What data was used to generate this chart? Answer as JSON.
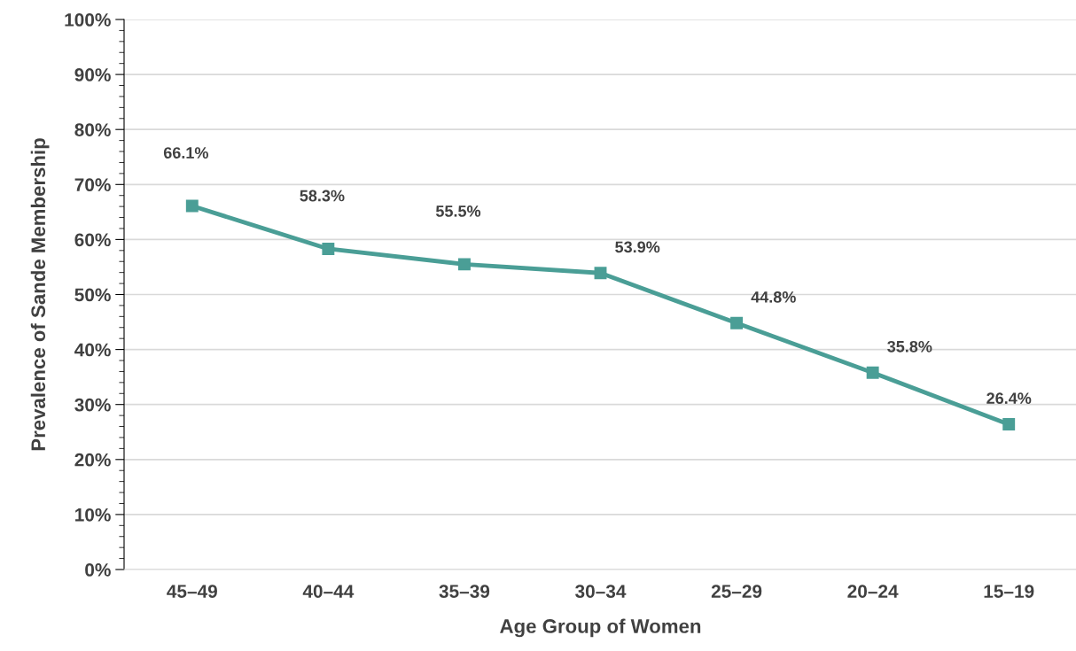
{
  "chart_data": {
    "type": "line",
    "xlabel": "Age Group of Women",
    "ylabel": "Prevalence of Sande Membership",
    "categories": [
      "45–49",
      "40–44",
      "35–39",
      "30–34",
      "25–29",
      "20–24",
      "15–19"
    ],
    "series": [
      {
        "color": "#4a9e96",
        "values": [
          66.1,
          58.3,
          55.5,
          53.9,
          44.8,
          35.8,
          26.4
        ],
        "value_labels": [
          "66.1%",
          "58.3%",
          "55.5%",
          "53.9%",
          "44.8%",
          "35.8%",
          "26.4%"
        ]
      }
    ],
    "ylim": [
      0,
      100
    ],
    "yticks": [
      {
        "value": 0,
        "label": "0%"
      },
      {
        "value": 2,
        "label": null
      },
      {
        "value": 4,
        "label": null
      },
      {
        "value": 6,
        "label": null
      },
      {
        "value": 8,
        "label": null
      },
      {
        "value": 10,
        "label": "10%"
      },
      {
        "value": 12,
        "label": null
      },
      {
        "value": 14,
        "label": null
      },
      {
        "value": 16,
        "label": null
      },
      {
        "value": 18,
        "label": null
      },
      {
        "value": 20,
        "label": "20%"
      },
      {
        "value": 22,
        "label": null
      },
      {
        "value": 24,
        "label": null
      },
      {
        "value": 26,
        "label": null
      },
      {
        "value": 28,
        "label": null
      },
      {
        "value": 30,
        "label": "30%"
      },
      {
        "value": 32,
        "label": null
      },
      {
        "value": 34,
        "label": null
      },
      {
        "value": 36,
        "label": null
      },
      {
        "value": 38,
        "label": null
      },
      {
        "value": 40,
        "label": "40%"
      },
      {
        "value": 42,
        "label": null
      },
      {
        "value": 44,
        "label": null
      },
      {
        "value": 46,
        "label": null
      },
      {
        "value": 48,
        "label": null
      },
      {
        "value": 50,
        "label": "50%"
      },
      {
        "value": 52,
        "label": null
      },
      {
        "value": 54,
        "label": null
      },
      {
        "value": 56,
        "label": null
      },
      {
        "value": 58,
        "label": null
      },
      {
        "value": 60,
        "label": "60%"
      },
      {
        "value": 62,
        "label": null
      },
      {
        "value": 64,
        "label": null
      },
      {
        "value": 66,
        "label": null
      },
      {
        "value": 68,
        "label": null
      },
      {
        "value": 70,
        "label": "70%"
      },
      {
        "value": 72,
        "label": null
      },
      {
        "value": 74,
        "label": null
      },
      {
        "value": 76,
        "label": null
      },
      {
        "value": 78,
        "label": null
      },
      {
        "value": 80,
        "label": "80%"
      },
      {
        "value": 82,
        "label": null
      },
      {
        "value": 84,
        "label": null
      },
      {
        "value": 86,
        "label": null
      },
      {
        "value": 88,
        "label": null
      },
      {
        "value": 90,
        "label": "90%"
      },
      {
        "value": 92,
        "label": null
      },
      {
        "value": 94,
        "label": null
      },
      {
        "value": 96,
        "label": null
      },
      {
        "value": 98,
        "label": null
      },
      {
        "value": 100,
        "label": "100%"
      }
    ],
    "grid": "y",
    "marker": "square",
    "line_style": "solid"
  }
}
